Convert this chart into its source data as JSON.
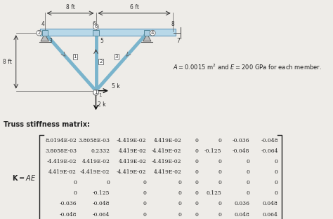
{
  "title_truss": "Truss stiffness matrix:",
  "ae_note": "$A = 0.0015$ m$^2$ and $E = 200$ GPa for each member.",
  "matrix": [
    [
      "8.0194E•02",
      "3.8058E•03",
      "−4.419E•02",
      "4.419E•02",
      "0",
      "0",
      "−0.036",
      "−0.048"
    ],
    [
      "3.8058E•03",
      "0.2332",
      "4.419E•02",
      "−4.419E•02",
      "0",
      "−0.125",
      "−0.048",
      "−0.064"
    ],
    [
      "−4.419E•02",
      "4.419E•02",
      "4.419E•02",
      "−4.419E•02",
      "0",
      "0",
      "0",
      "0"
    ],
    [
      "4.419E•02",
      "−4.419E•02",
      "−4.419E•02",
      "4.419E•02",
      "0",
      "0",
      "0",
      "0"
    ],
    [
      "0",
      "0",
      "0",
      "0",
      "0",
      "0",
      "0",
      "0"
    ],
    [
      "0",
      "−0.125",
      "0",
      "0",
      "0",
      "0.125",
      "0",
      "0"
    ],
    [
      "−0.036",
      "−0.048",
      "0",
      "0",
      "0",
      "0",
      "0.036",
      "0.048"
    ],
    [
      "−0.048",
      "−0.064",
      "0",
      "0",
      "0",
      "0",
      "0.048",
      "0.064"
    ]
  ],
  "matrix_display": [
    [
      "8.0194E-02",
      "3.8058E-03",
      "-4.419E-02",
      "4.419E-02",
      "0",
      "0",
      "-0.036",
      "-0.048"
    ],
    [
      "3.8058E-03",
      "0.2332",
      "4.419E-02",
      "-4.419E-02",
      "0",
      "-0.125",
      "-0.048",
      "-0.064"
    ],
    [
      "-4.419E-02",
      "4.419E-02",
      "4.419E-02",
      "-4.419E-02",
      "0",
      "0",
      "0",
      "0"
    ],
    [
      "4.419E-02",
      "-4.419E-02",
      "-4.419E-02",
      "4.419E-02",
      "0",
      "0",
      "0",
      "0"
    ],
    [
      "0",
      "0",
      "0",
      "0",
      "0",
      "0",
      "0",
      "0"
    ],
    [
      "0",
      "-0.125",
      "0",
      "0",
      "0",
      "0.125",
      "0",
      "0"
    ],
    [
      "-0.036",
      "-0.048",
      "0",
      "0",
      "0",
      "0",
      "0.036",
      "0.048"
    ],
    [
      "-0.048",
      "-0.064",
      "0",
      "0",
      "0",
      "0",
      "0.048",
      "0.064"
    ]
  ],
  "bg_color": "#eeece8",
  "text_color": "#222222"
}
